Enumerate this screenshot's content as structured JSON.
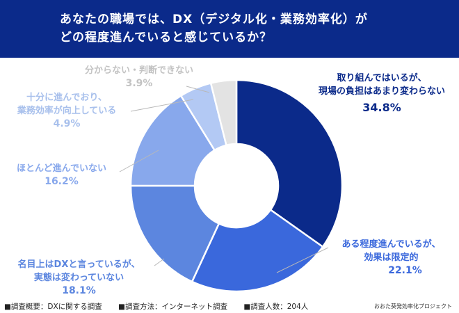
{
  "header": {
    "line1": "あなたの職場では、DX（デジタル化・業務効率化）が",
    "line2": "どの程度進んでいると感じているか？"
  },
  "chart_data": {
    "type": "pie",
    "style": "donut",
    "start": "12 o'clock",
    "direction": "clockwise",
    "slices": [
      {
        "label": "取り組んではいるが、現場の負担はあまり変わらない",
        "label_lines": [
          "取り組んではいるが、",
          "現場の負担はあまり変わらない"
        ],
        "value": 34.8,
        "value_text": "34.8%",
        "color": "#0b2a8a"
      },
      {
        "label": "ある程度進んでいるが、効果は限定的",
        "label_lines": [
          "ある程度進んでいるが、",
          "効果は限定的"
        ],
        "value": 22.1,
        "value_text": "22.1%",
        "color": "#3a68dc"
      },
      {
        "label": "名目上はDXと言っているが、実態は変わっていない",
        "label_lines": [
          "名目上はDXと言っているが、",
          "実態は変わっていない"
        ],
        "value": 18.1,
        "value_text": "18.1%",
        "color": "#5c86df"
      },
      {
        "label": "ほとんど進んでいない",
        "label_lines": [
          "ほとんど進んでいない"
        ],
        "value": 16.2,
        "value_text": "16.2%",
        "color": "#88a8ec"
      },
      {
        "label": "十分に進んでおり、業務効率が向上している",
        "label_lines": [
          "十分に進んでおり、",
          "業務効率が向上している"
        ],
        "value": 4.9,
        "value_text": "4.9%",
        "color": "#b3c9f4"
      },
      {
        "label": "分からない・判断できない",
        "label_lines": [
          "分からない・判断できない"
        ],
        "value": 3.9,
        "value_text": "3.9%",
        "color": "#e3e3e3"
      }
    ]
  },
  "footer": {
    "overview": "■調査概要：DXに関する調査",
    "method": "■調査方法：インターネット調査",
    "count": "■調査人数：204人",
    "credit": "おおた葵発効率化プロジェクト"
  }
}
